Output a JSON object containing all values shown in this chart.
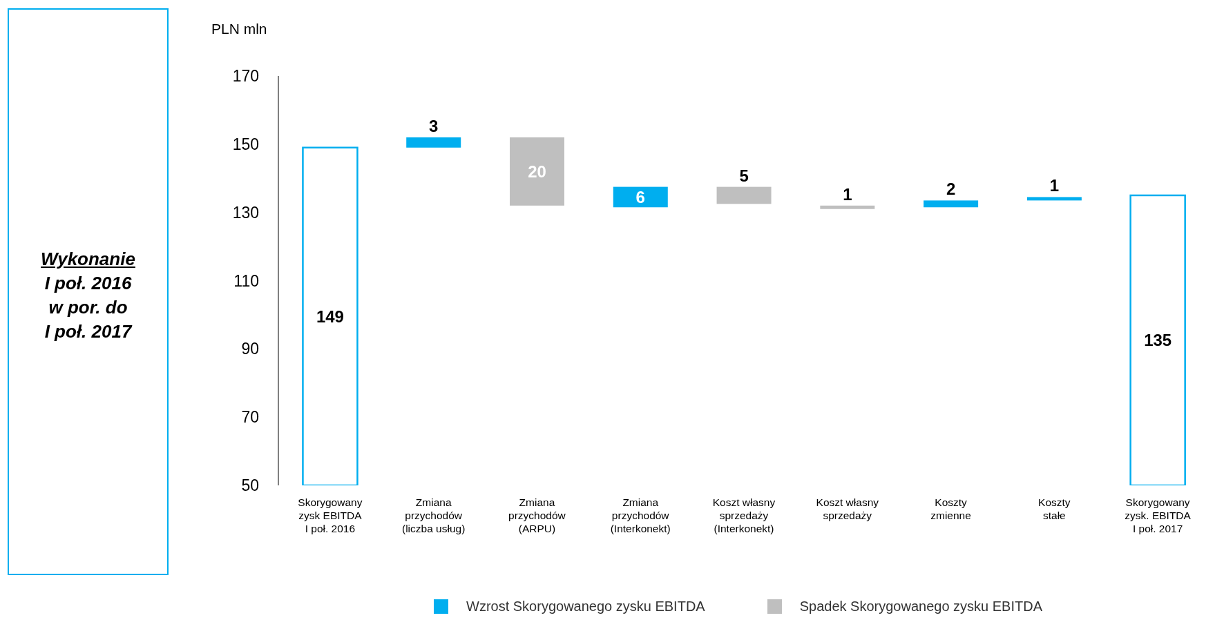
{
  "chart_data": {
    "type": "bar",
    "ylabel": "PLN mln",
    "annotations": [
      "Wykonanie",
      "I poł. 2016\nw por. do\nI poł. 2017"
    ],
    "categories": [
      "Skorygowany\nzysk EBITDA\nI poł. 2016",
      "Zmiana\nprzychodów\n(liczba usług)",
      "Zmiana\nprzychodów\n(ARPU)",
      "Zmiana\nprzychodów\n(Interkonekt)",
      "Koszt własny\nsprzedaży\n(Interkonekt)",
      "Koszt własny\nsprzedaży",
      "Koszty\nzmienne",
      "Koszty\nstałe",
      "Skorygowany\nzysk. EBITDA\nI poł. 2017"
    ],
    "series": [
      {
        "color": "#00aeef",
        "values": [
          149,
          null,
          null,
          null,
          null,
          null,
          null,
          null,
          135
        ]
      },
      {
        "name": "Wzrost Skorygowanego zysku EBITDA",
        "color": "#00aeef",
        "values": [
          null,
          3,
          null,
          6,
          null,
          null,
          2,
          1,
          null
        ],
        "base": [
          null,
          149,
          null,
          131.5,
          null,
          null,
          131.5,
          133.5,
          null
        ]
      },
      {
        "name": "Spadek Skorygowanego zysku EBITDA",
        "color": "#bfbfbf",
        "values": [
          null,
          null,
          20,
          null,
          5,
          1,
          null,
          null,
          null
        ],
        "base": [
          null,
          null,
          132,
          null,
          132.5,
          131,
          null,
          null,
          null
        ]
      }
    ],
    "data_labels": true,
    "ylim": [
      50,
      170
    ],
    "yticks": [
      50,
      70,
      90,
      110,
      130,
      150,
      170
    ],
    "legend": "bottom"
  }
}
